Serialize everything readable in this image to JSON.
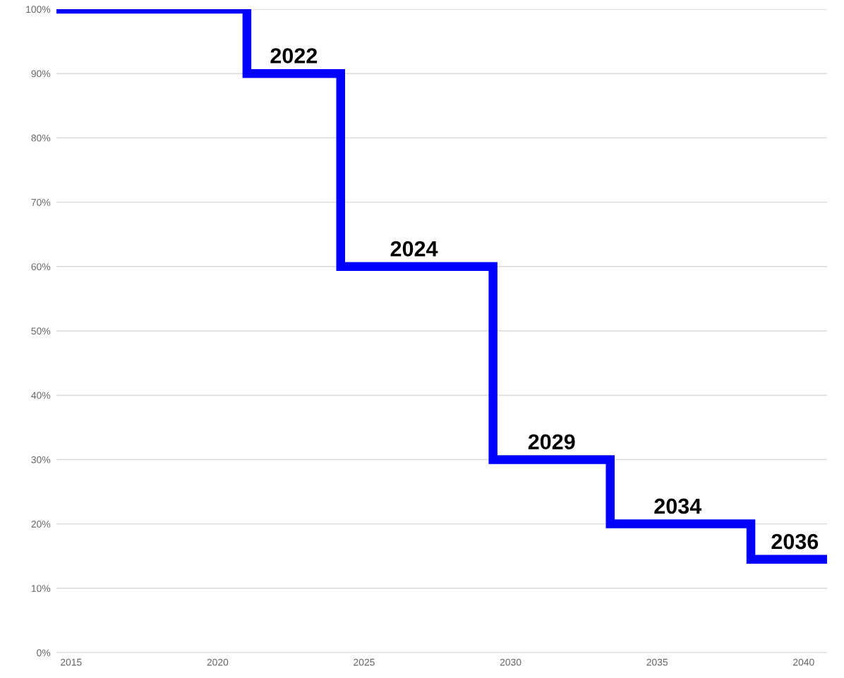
{
  "chart_data": {
    "type": "step",
    "x": [
      2014.5,
      2021,
      2024.2,
      2029.4,
      2033.4,
      2038.2,
      2040.8
    ],
    "series": [
      {
        "color": "#0000ff",
        "values": [
          100,
          90,
          60,
          30,
          20,
          14.5,
          14.5
        ]
      }
    ],
    "xlim": [
      2014.5,
      2040.8
    ],
    "xticks": [
      2015,
      2020,
      2025,
      2030,
      2035,
      2040
    ],
    "ylim": [
      0,
      100
    ],
    "yticks": [
      {
        "value": 0,
        "label": "0%"
      },
      {
        "value": 10,
        "label": "10%"
      },
      {
        "value": 20,
        "label": "20%"
      },
      {
        "value": 30,
        "label": "30%"
      },
      {
        "value": 40,
        "label": "40%"
      },
      {
        "value": 50,
        "label": "50%"
      },
      {
        "value": 60,
        "label": "60%"
      },
      {
        "value": 70,
        "label": "70%"
      },
      {
        "value": 80,
        "label": "80%"
      },
      {
        "value": 90,
        "label": "90%"
      },
      {
        "value": 100,
        "label": "100%"
      }
    ],
    "grid": "y",
    "annotations": [
      {
        "text": "2022",
        "x": 2022.6,
        "y": 90
      },
      {
        "text": "2024",
        "x": 2026.7,
        "y": 60
      },
      {
        "text": "2029",
        "x": 2031.4,
        "y": 30
      },
      {
        "text": "2034",
        "x": 2035.7,
        "y": 20
      },
      {
        "text": "2036",
        "x": 2039.7,
        "y": 14.5
      }
    ]
  }
}
